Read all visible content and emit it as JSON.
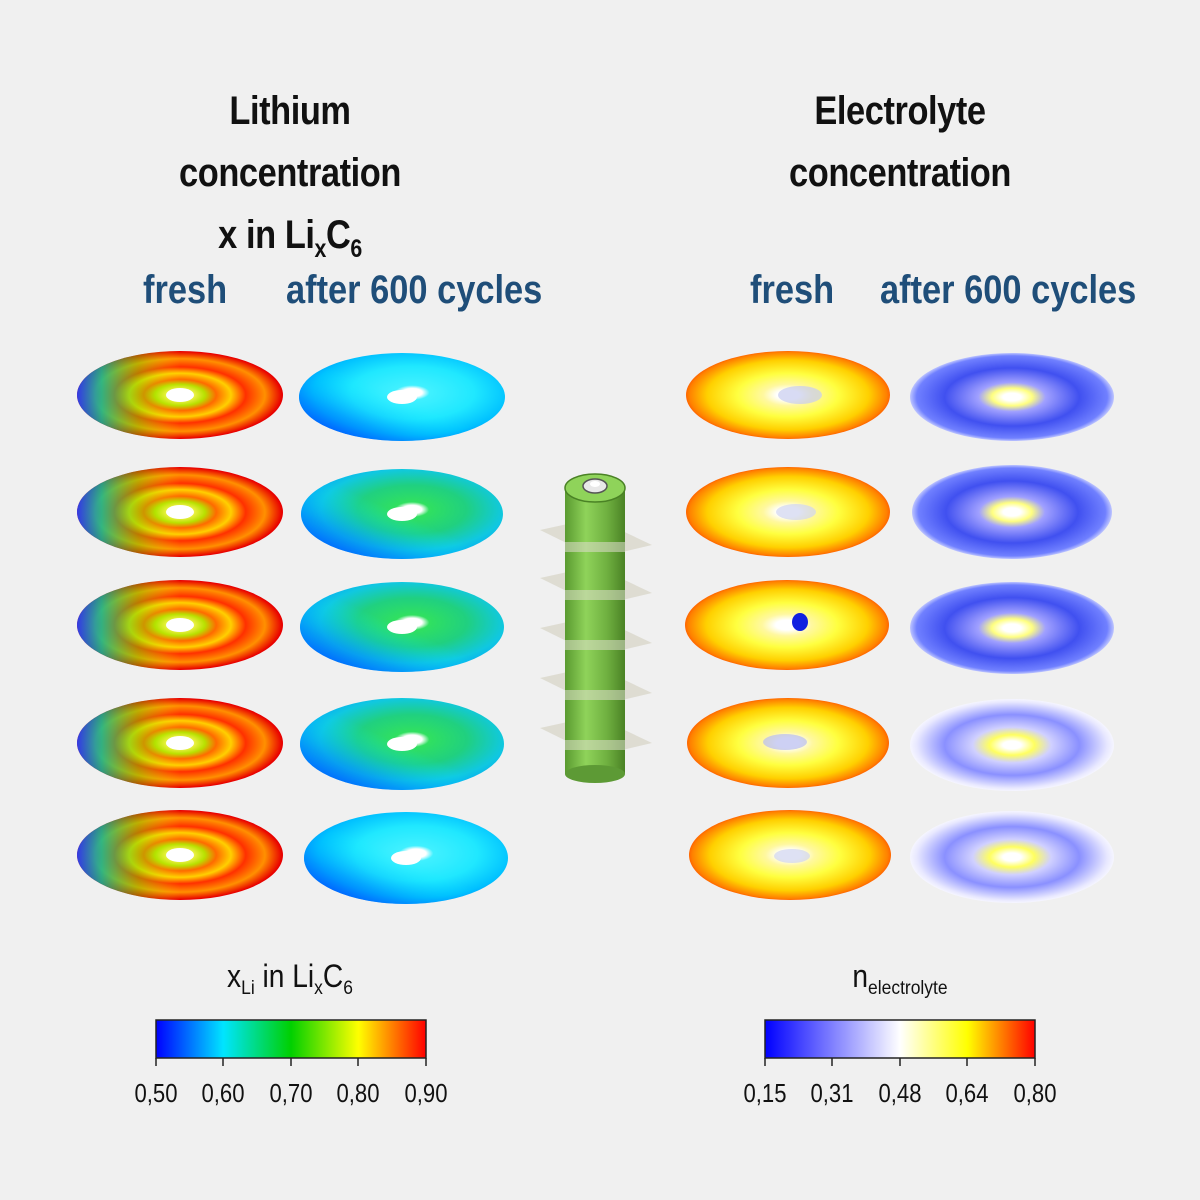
{
  "left_panel": {
    "title_line1": "Lithium concentration",
    "title_line2_pre": "x in Li",
    "title_line2_sub1": "x",
    "title_line2_mid": "C",
    "title_line2_sub2": "6",
    "col_fresh": "fresh",
    "col_aged": "after 600 cycles",
    "colorbar": {
      "label_pre": "x",
      "label_sub1": "Li",
      "label_mid": " in Li",
      "label_sub2": "x",
      "label_post": "C",
      "label_sub3": "6",
      "ticks": [
        "0,50",
        "0,60",
        "0,70",
        "0,80",
        "0,90"
      ],
      "colors": [
        "#0000ff",
        "#00e5ff",
        "#00d000",
        "#ffff00",
        "#ff0000"
      ]
    }
  },
  "right_panel": {
    "title_line1": "Electrolyte",
    "title_line2": "concentration",
    "col_fresh": "fresh",
    "col_aged": "after 600 cycles",
    "colorbar": {
      "label_pre": "n",
      "label_sub": "electrolyte",
      "ticks": [
        "0,15",
        "0,31",
        "0,48",
        "0,64",
        "0,80"
      ],
      "colors": [
        "#0000ff",
        "#8080ff",
        "#ffffff",
        "#ffff00",
        "#ff0000"
      ]
    }
  },
  "cell_color": "#7cc14a",
  "slice_count": 5
}
